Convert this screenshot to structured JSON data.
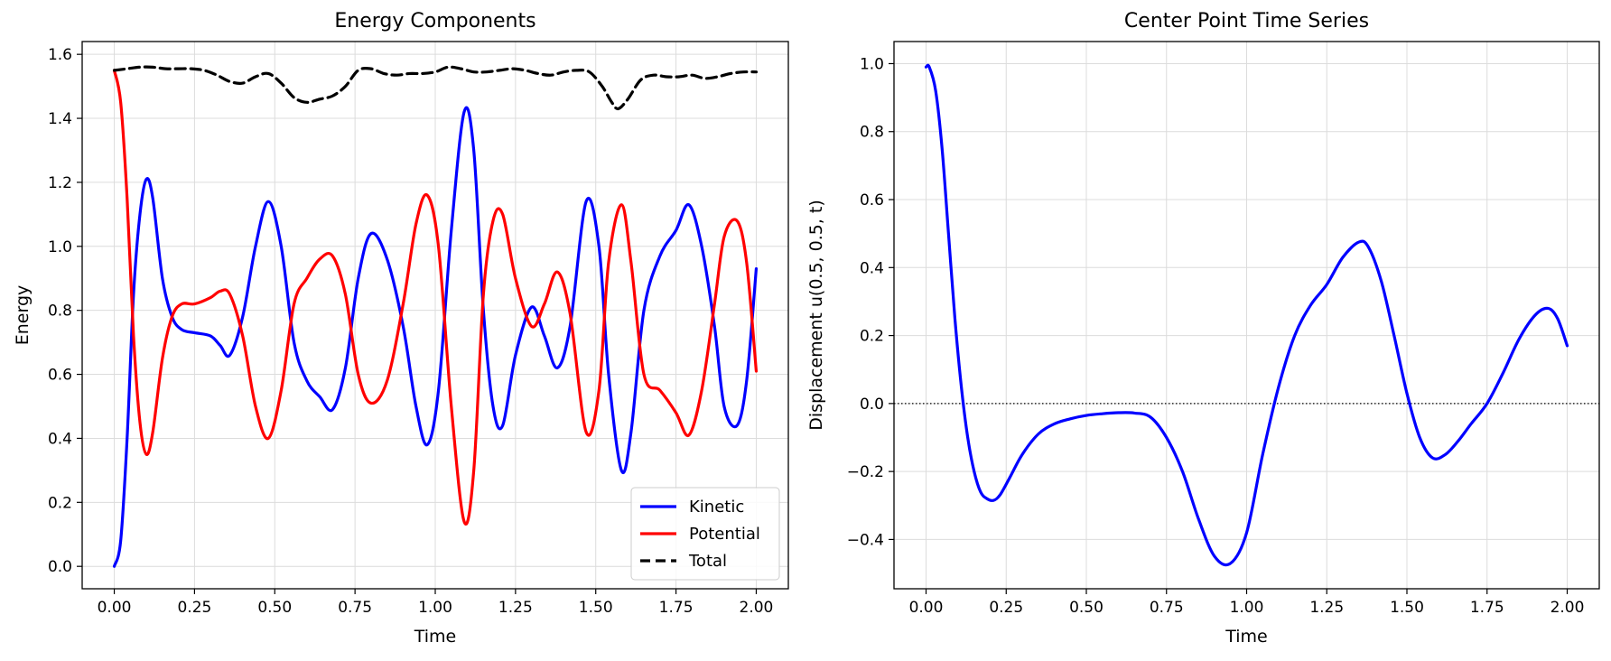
{
  "chart_data": [
    {
      "type": "line",
      "title": "Energy Components",
      "xlabel": "Time",
      "ylabel": "Energy",
      "xlim": [
        -0.1,
        2.1
      ],
      "ylim": [
        -0.07,
        1.64
      ],
      "xticks": [
        0.0,
        0.25,
        0.5,
        0.75,
        1.0,
        1.25,
        1.5,
        1.75,
        2.0
      ],
      "xtick_labels": [
        "0.00",
        "0.25",
        "0.50",
        "0.75",
        "1.00",
        "1.25",
        "1.50",
        "1.75",
        "2.00"
      ],
      "yticks": [
        0.0,
        0.2,
        0.4,
        0.6,
        0.8,
        1.0,
        1.2,
        1.4,
        1.6
      ],
      "ytick_labels": [
        "0.0",
        "0.2",
        "0.4",
        "0.6",
        "0.8",
        "1.0",
        "1.2",
        "1.4",
        "1.6"
      ],
      "grid": true,
      "legend": "lower-right",
      "series": [
        {
          "name": "Kinetic",
          "color": "#0000ff",
          "style": "solid",
          "x": [
            0.0,
            0.02,
            0.04,
            0.06,
            0.08,
            0.1,
            0.12,
            0.15,
            0.18,
            0.21,
            0.25,
            0.3,
            0.33,
            0.36,
            0.4,
            0.44,
            0.48,
            0.52,
            0.56,
            0.6,
            0.64,
            0.68,
            0.72,
            0.76,
            0.8,
            0.85,
            0.9,
            0.94,
            0.975,
            1.01,
            1.05,
            1.09,
            1.12,
            1.15,
            1.18,
            1.21,
            1.25,
            1.3,
            1.34,
            1.38,
            1.42,
            1.47,
            1.51,
            1.54,
            1.58,
            1.61,
            1.65,
            1.7,
            1.75,
            1.79,
            1.83,
            1.87,
            1.9,
            1.94,
            1.97,
            2.0
          ],
          "y": [
            0.0,
            0.08,
            0.4,
            0.85,
            1.1,
            1.21,
            1.15,
            0.9,
            0.78,
            0.74,
            0.73,
            0.72,
            0.69,
            0.66,
            0.78,
            1.0,
            1.14,
            1.0,
            0.7,
            0.58,
            0.53,
            0.49,
            0.62,
            0.9,
            1.04,
            0.96,
            0.75,
            0.5,
            0.38,
            0.55,
            1.05,
            1.42,
            1.3,
            0.8,
            0.5,
            0.44,
            0.66,
            0.81,
            0.72,
            0.62,
            0.75,
            1.14,
            1.0,
            0.6,
            0.3,
            0.42,
            0.8,
            0.97,
            1.05,
            1.13,
            1.0,
            0.75,
            0.5,
            0.44,
            0.58,
            0.93
          ]
        },
        {
          "name": "Potential",
          "color": "#ff0000",
          "style": "solid",
          "x": [
            0.0,
            0.02,
            0.04,
            0.06,
            0.08,
            0.1,
            0.12,
            0.15,
            0.18,
            0.21,
            0.25,
            0.3,
            0.33,
            0.36,
            0.4,
            0.44,
            0.48,
            0.52,
            0.56,
            0.6,
            0.64,
            0.68,
            0.72,
            0.76,
            0.8,
            0.85,
            0.9,
            0.94,
            0.975,
            1.01,
            1.05,
            1.09,
            1.12,
            1.15,
            1.18,
            1.21,
            1.25,
            1.3,
            1.34,
            1.38,
            1.42,
            1.47,
            1.51,
            1.54,
            1.58,
            1.61,
            1.65,
            1.7,
            1.75,
            1.79,
            1.83,
            1.87,
            1.9,
            1.94,
            1.97,
            2.0
          ],
          "y": [
            1.55,
            1.45,
            1.15,
            0.72,
            0.45,
            0.35,
            0.42,
            0.65,
            0.78,
            0.82,
            0.82,
            0.84,
            0.86,
            0.85,
            0.72,
            0.5,
            0.4,
            0.55,
            0.82,
            0.9,
            0.96,
            0.97,
            0.85,
            0.6,
            0.51,
            0.58,
            0.82,
            1.07,
            1.16,
            1.0,
            0.5,
            0.14,
            0.3,
            0.85,
            1.08,
            1.1,
            0.9,
            0.75,
            0.82,
            0.92,
            0.79,
            0.42,
            0.55,
            0.95,
            1.13,
            0.95,
            0.6,
            0.55,
            0.48,
            0.41,
            0.55,
            0.82,
            1.03,
            1.08,
            0.95,
            0.61
          ]
        },
        {
          "name": "Total",
          "color": "#000000",
          "style": "dashed",
          "x": [
            0.0,
            0.04,
            0.08,
            0.12,
            0.16,
            0.2,
            0.24,
            0.28,
            0.32,
            0.36,
            0.4,
            0.44,
            0.48,
            0.52,
            0.56,
            0.6,
            0.64,
            0.68,
            0.72,
            0.76,
            0.8,
            0.84,
            0.88,
            0.92,
            0.96,
            1.0,
            1.04,
            1.08,
            1.12,
            1.16,
            1.2,
            1.24,
            1.28,
            1.32,
            1.36,
            1.4,
            1.44,
            1.48,
            1.52,
            1.55,
            1.57,
            1.6,
            1.64,
            1.68,
            1.72,
            1.76,
            1.8,
            1.84,
            1.88,
            1.92,
            1.96,
            2.0
          ],
          "y": [
            1.55,
            1.555,
            1.56,
            1.56,
            1.555,
            1.555,
            1.555,
            1.55,
            1.535,
            1.515,
            1.51,
            1.53,
            1.54,
            1.51,
            1.465,
            1.45,
            1.46,
            1.47,
            1.5,
            1.55,
            1.555,
            1.54,
            1.535,
            1.54,
            1.54,
            1.545,
            1.56,
            1.555,
            1.545,
            1.545,
            1.55,
            1.555,
            1.55,
            1.54,
            1.535,
            1.545,
            1.55,
            1.545,
            1.5,
            1.45,
            1.43,
            1.46,
            1.52,
            1.535,
            1.53,
            1.53,
            1.535,
            1.525,
            1.53,
            1.54,
            1.545,
            1.545
          ]
        }
      ]
    },
    {
      "type": "line",
      "title": "Center Point Time Series",
      "xlabel": "Time",
      "ylabel": "Displacement u(0.5, 0.5, t)",
      "xlim": [
        -0.1,
        2.1
      ],
      "ylim": [
        -0.545,
        1.065
      ],
      "xticks": [
        0.0,
        0.25,
        0.5,
        0.75,
        1.0,
        1.25,
        1.5,
        1.75,
        2.0
      ],
      "xtick_labels": [
        "0.00",
        "0.25",
        "0.50",
        "0.75",
        "1.00",
        "1.25",
        "1.50",
        "1.75",
        "2.00"
      ],
      "yticks": [
        -0.4,
        -0.2,
        0.0,
        0.2,
        0.4,
        0.6,
        0.8,
        1.0
      ],
      "ytick_labels": [
        "−0.4",
        "−0.2",
        "0.0",
        "0.2",
        "0.4",
        "0.6",
        "0.8",
        "1.0"
      ],
      "grid": true,
      "reference_line": 0.0,
      "series": [
        {
          "color": "#0000ff",
          "style": "solid",
          "x": [
            0.0,
            0.01,
            0.03,
            0.05,
            0.07,
            0.09,
            0.11,
            0.13,
            0.15,
            0.17,
            0.19,
            0.21,
            0.23,
            0.26,
            0.3,
            0.35,
            0.4,
            0.45,
            0.5,
            0.55,
            0.6,
            0.65,
            0.7,
            0.75,
            0.8,
            0.85,
            0.9,
            0.95,
            1.0,
            1.05,
            1.1,
            1.15,
            1.2,
            1.25,
            1.3,
            1.35,
            1.38,
            1.42,
            1.46,
            1.5,
            1.54,
            1.58,
            1.62,
            1.66,
            1.7,
            1.75,
            1.8,
            1.85,
            1.9,
            1.94,
            1.97,
            2.0
          ],
          "y": [
            0.99,
            0.99,
            0.92,
            0.75,
            0.5,
            0.25,
            0.05,
            -0.1,
            -0.2,
            -0.26,
            -0.28,
            -0.285,
            -0.27,
            -0.22,
            -0.15,
            -0.09,
            -0.06,
            -0.045,
            -0.035,
            -0.03,
            -0.027,
            -0.028,
            -0.04,
            -0.1,
            -0.2,
            -0.34,
            -0.45,
            -0.47,
            -0.38,
            -0.15,
            0.05,
            0.2,
            0.29,
            0.35,
            0.43,
            0.475,
            0.46,
            0.36,
            0.2,
            0.03,
            -0.1,
            -0.16,
            -0.15,
            -0.11,
            -0.06,
            0.0,
            0.09,
            0.19,
            0.26,
            0.28,
            0.25,
            0.17
          ]
        }
      ]
    }
  ]
}
